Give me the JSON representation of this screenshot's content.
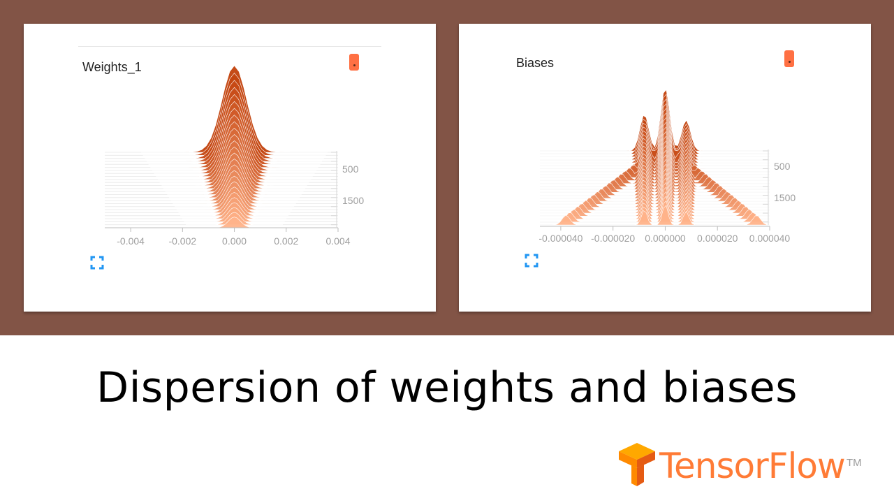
{
  "slide": {
    "title": "Dispersion of weights and biases",
    "logo": {
      "text": "TensorFlow",
      "tm": "TM",
      "colors": {
        "light": "#ffa800",
        "mid": "#ff8a00",
        "dark": "#e55b13"
      }
    }
  },
  "icons": {
    "menu": "dots-menu-icon",
    "expand": "fullscreen-expand-icon",
    "logo": "tensorflow-logo-icon"
  },
  "colors": {
    "background_band": "#825446",
    "card": "#ffffff",
    "accent": "#ff7043",
    "expand": "#2196f3",
    "hist_dark": "#c2410c",
    "hist_light": "#ffb38a"
  },
  "chart_data": [
    {
      "type": "area",
      "subtype": "histogram-offset",
      "title": "Weights_1",
      "xlabel": "",
      "ylabel": "",
      "x_ticks": [
        "-0.004",
        "-0.002",
        "0.000",
        "0.002",
        "0.004"
      ],
      "xlim": [
        -0.005,
        0.004
      ],
      "y_ticks": [
        "500",
        "1500"
      ],
      "steps": [
        0,
        250,
        500,
        750,
        1000,
        1250,
        1500,
        1750,
        2000
      ],
      "distribution": {
        "center": 0.0,
        "spread_first": 0.0012,
        "spread_last": 0.0006,
        "peak_first": 1.0,
        "peak_last": 1.5
      },
      "legend": "none",
      "grid": false
    },
    {
      "type": "area",
      "subtype": "histogram-offset",
      "title": "Biases",
      "xlabel": "",
      "ylabel": "",
      "x_ticks": [
        "-0.000040",
        "-0.000020",
        "0.000000",
        "0.000020",
        "0.000040"
      ],
      "xlim": [
        -4.8e-05,
        4e-05
      ],
      "y_ticks": [
        "500",
        "1500"
      ],
      "steps": [
        0,
        250,
        500,
        750,
        1000,
        1250,
        1500,
        1750,
        2000
      ],
      "distribution": {
        "center": 0.0,
        "arms": [
          -3.8e-05,
          3.5e-05
        ],
        "inner": [
          -8e-06,
          0.0,
          8e-06
        ],
        "spread_first": 5e-06,
        "spread_last": 2e-06
      },
      "legend": "none",
      "grid": false
    }
  ]
}
